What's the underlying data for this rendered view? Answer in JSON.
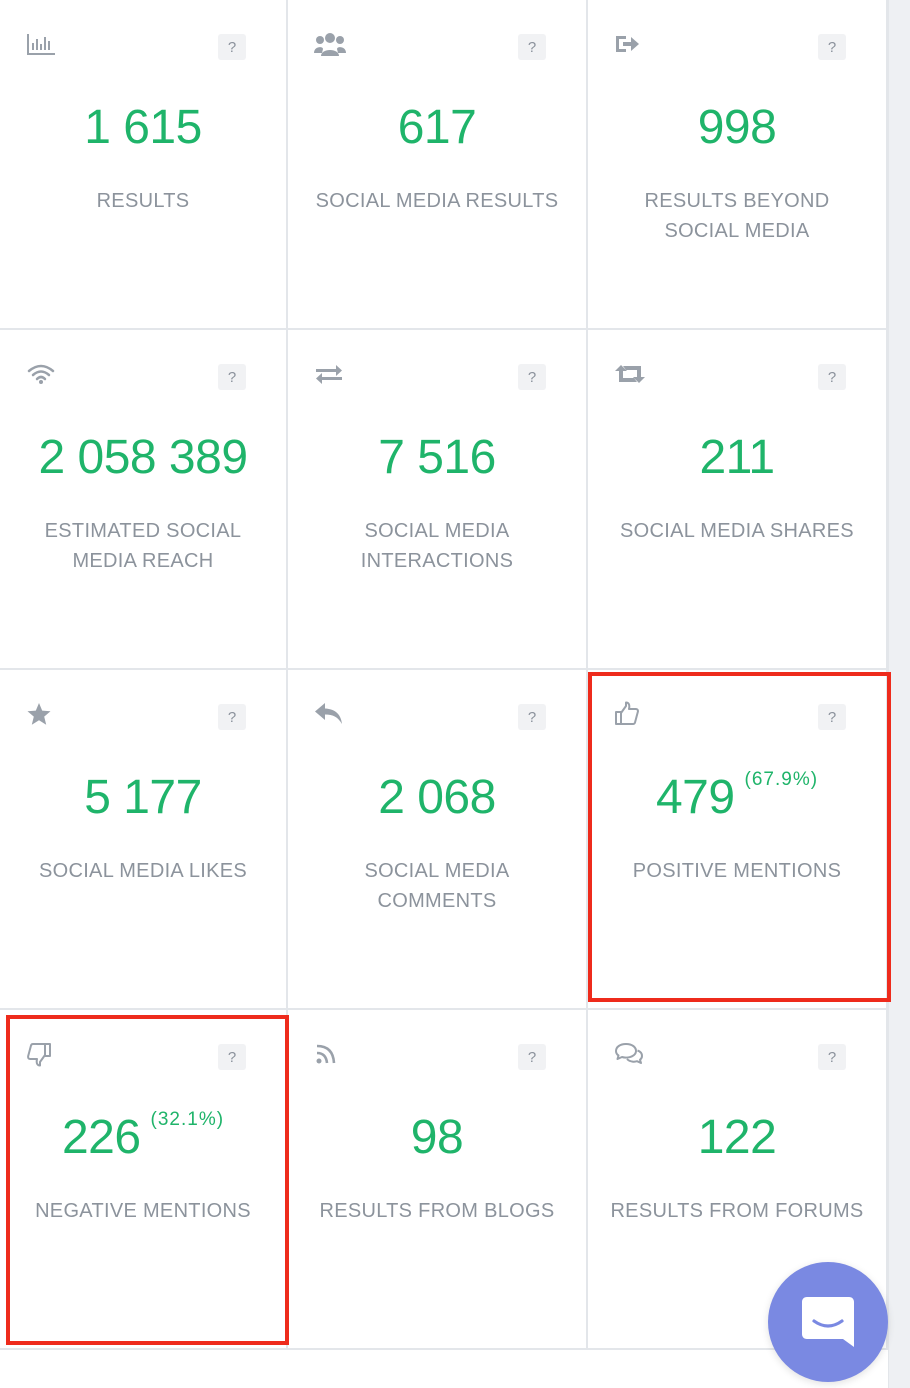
{
  "tiles": [
    {
      "icon": "bar-chart-icon",
      "value": "1 615",
      "label": "RESULTS",
      "help": "?"
    },
    {
      "icon": "users-icon",
      "value": "617",
      "label": "SOCIAL MEDIA RESULTS",
      "help": "?"
    },
    {
      "icon": "sign-out-icon",
      "value": "998",
      "label": "RESULTS BEYOND SOCIAL MEDIA",
      "help": "?"
    },
    {
      "icon": "wifi-icon",
      "value": "2 058 389",
      "label": "ESTIMATED SOCIAL MEDIA REACH",
      "help": "?"
    },
    {
      "icon": "exchange-icon",
      "value": "7 516",
      "label": "SOCIAL MEDIA INTERACTIONS",
      "help": "?"
    },
    {
      "icon": "retweet-icon",
      "value": "211",
      "label": "SOCIAL MEDIA SHARES",
      "help": "?"
    },
    {
      "icon": "star-icon",
      "value": "5 177",
      "label": "SOCIAL MEDIA LIKES",
      "help": "?"
    },
    {
      "icon": "reply-icon",
      "value": "2 068",
      "label": "SOCIAL MEDIA COMMENTS",
      "help": "?"
    },
    {
      "icon": "thumbs-up-icon",
      "value": "479",
      "percent": "(67.9%)",
      "label": "POSITIVE MENTIONS",
      "help": "?",
      "highlighted": true
    },
    {
      "icon": "thumbs-down-icon",
      "value": "226",
      "percent": "(32.1%)",
      "label": "NEGATIVE MENTIONS",
      "help": "?",
      "highlighted": true
    },
    {
      "icon": "rss-icon",
      "value": "98",
      "label": "RESULTS FROM BLOGS",
      "help": "?"
    },
    {
      "icon": "comments-icon",
      "value": "122",
      "label": "RESULTS FROM FORUMS",
      "help": "?"
    }
  ],
  "colors": {
    "value": "#1fb46a",
    "label": "#8c939c",
    "icon": "#9aa1aa",
    "highlight": "#ee2b1c",
    "chat_launcher": "#7a89e2"
  },
  "chat_launcher": {
    "icon": "chat-icon"
  }
}
